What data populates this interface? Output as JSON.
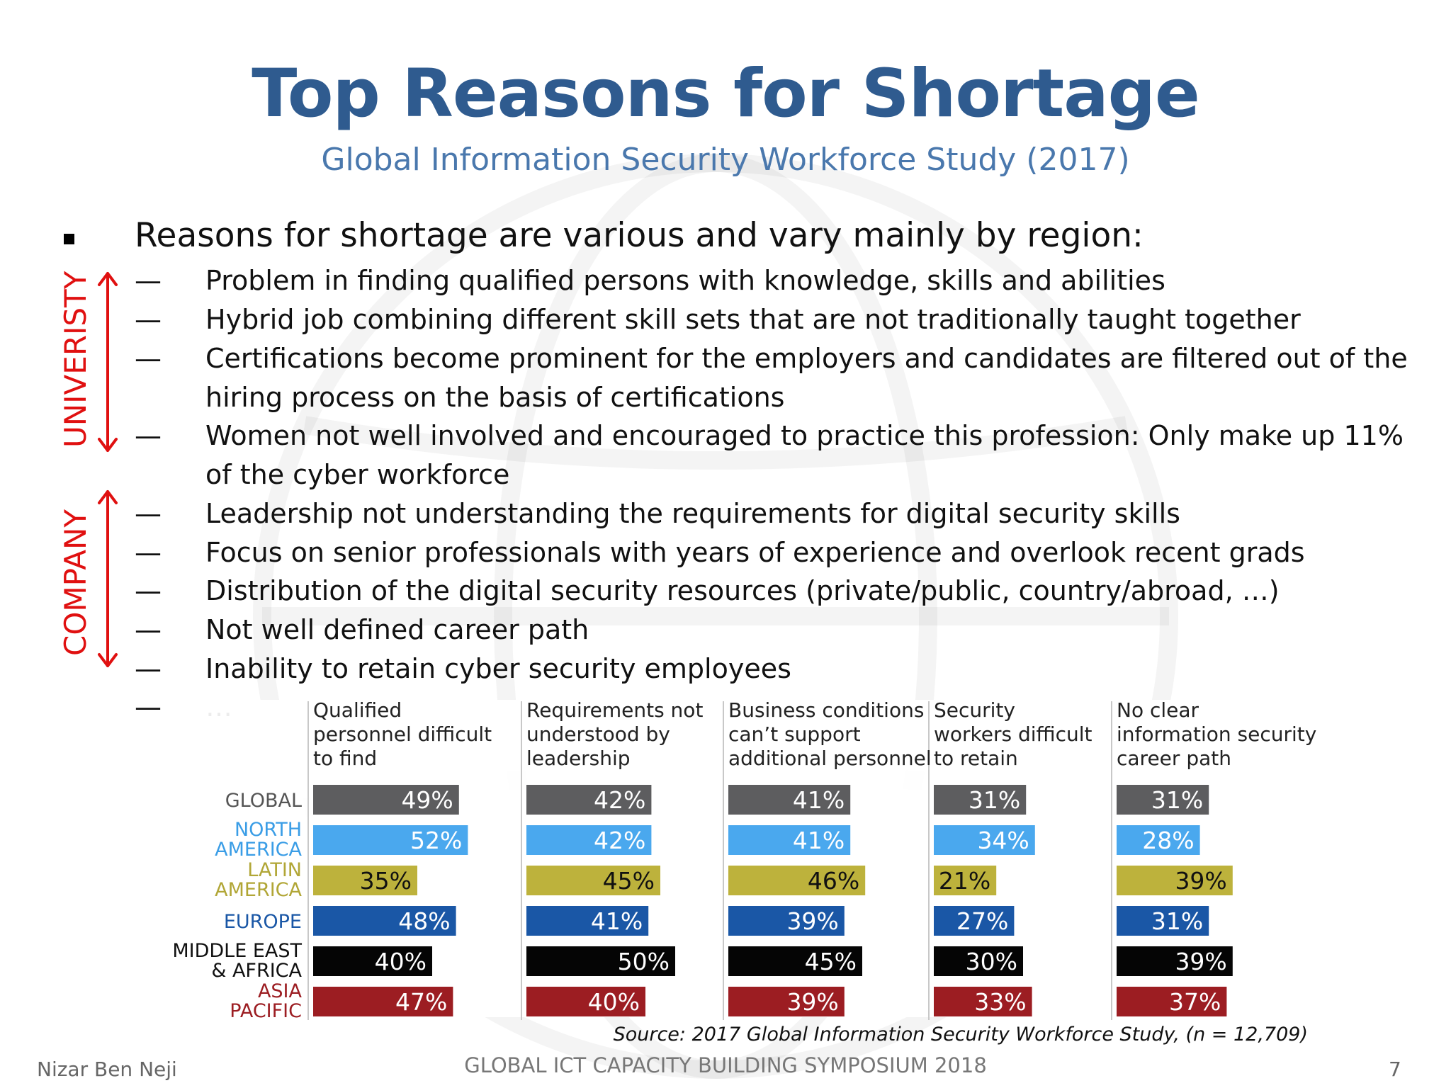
{
  "slide": {
    "title": "Top Reasons for Shortage",
    "subtitle": "Global Information Security Workforce Study (2017)",
    "main_point": "Reasons for shortage are various and vary mainly by region:",
    "bullet_dash": "—",
    "reasons": [
      "Problem in finding qualified persons with knowledge, skills and abilities",
      "Hybrid job combining different  skill sets that are not traditionally taught together",
      "Certifications become prominent for the employers and candidates are filtered out of the",
      "hiring process on the basis of certifications",
      "Women not well involved and encouraged to practice this profession: Only make up 11%",
      "of the cyber workforce",
      "Leadership not understanding the requirements for  digital security skills",
      "Focus on senior professionals with years of experience and overlook recent grads",
      "Distribution of the digital security resources (private/public, country/abroad, …)",
      "Not well defined career path",
      "Inability to retain cyber security employees",
      "…"
    ],
    "side_labels": {
      "university": "UNIVERISTY",
      "company": "COMPANY"
    },
    "colors": {
      "title": "#2f5b8f",
      "subtitle": "#4a78ad",
      "side_label": "#e01010"
    }
  },
  "chart_data": {
    "type": "bar",
    "orientation": "horizontal",
    "layout": "small-multiples",
    "panels": [
      "Qualified\npersonnel difficult\nto find",
      "Requirements not\nunderstood by\nleadership",
      "Business conditions\ncan’t support\nadditional personnel",
      "Security\nworkers difficult\nto retain",
      "No clear\ninformation security\ncareer path"
    ],
    "regions": [
      "GLOBAL",
      "NORTH\nAMERICA",
      "LATIN\nAMERICA",
      "EUROPE",
      "MIDDLE EAST\n& AFRICA",
      "ASIA\nPACIFIC"
    ],
    "region_colors": [
      "#5d5d5f",
      "#4aa8ee",
      "#bdb23c",
      "#1a57a6",
      "#050505",
      "#9c1d22"
    ],
    "region_label_colors": [
      "#555555",
      "#3a9de6",
      "#b1a636",
      "#1a57a6",
      "#111111",
      "#9c1d22"
    ],
    "values": [
      [
        49,
        42,
        41,
        31,
        31
      ],
      [
        52,
        42,
        41,
        34,
        28
      ],
      [
        35,
        45,
        46,
        21,
        39
      ],
      [
        48,
        41,
        39,
        27,
        31
      ],
      [
        40,
        50,
        45,
        30,
        39
      ],
      [
        47,
        40,
        39,
        33,
        37
      ]
    ],
    "value_suffix": "%",
    "source": "Source: 2017 Global Information Security Workforce Study, (n = 12,709)"
  },
  "footer": {
    "author": "Nizar Ben Neji",
    "event": "GLOBAL ICT CAPACITY BUILDING SYMPOSIUM 2018",
    "page_number": "7"
  }
}
